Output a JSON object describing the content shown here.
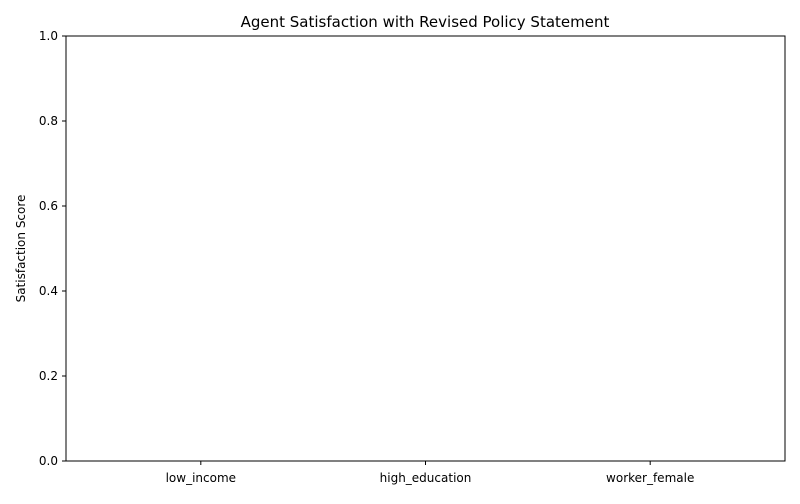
{
  "chart_data": {
    "type": "bar",
    "title": "Agent Satisfaction with Revised Policy Statement",
    "xlabel": "",
    "ylabel": "Satisfaction Score",
    "categories": [
      "low_income",
      "high_education",
      "worker_female"
    ],
    "values": [
      0,
      0,
      0
    ],
    "ylim": [
      0,
      1
    ],
    "yticks": [
      "0.0",
      "0.2",
      "0.4",
      "0.6",
      "0.8",
      "1.0"
    ],
    "grid": false,
    "bar_color": "#1f77b4"
  }
}
